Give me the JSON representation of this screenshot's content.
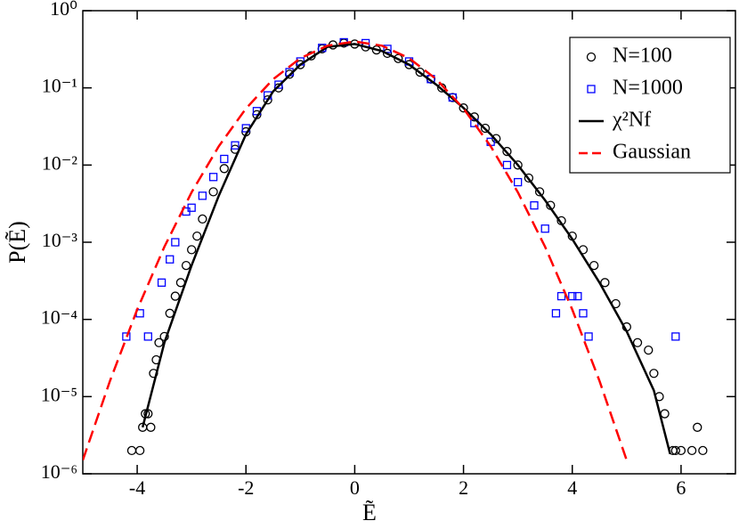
{
  "chart_data": {
    "type": "scatter",
    "x_label": "Ẽ",
    "y_label": "P(Ẽ)",
    "xlim": [
      -5,
      7
    ],
    "xticks": [
      -4,
      -2,
      0,
      2,
      4,
      6
    ],
    "ylim": [
      1e-06,
      1
    ],
    "log_y": true,
    "yticks": [
      {
        "value": 1e-06,
        "label": "10⁻⁶"
      },
      {
        "value": 1e-05,
        "label": "10⁻⁵"
      },
      {
        "value": 0.0001,
        "label": "10⁻⁴"
      },
      {
        "value": 0.001,
        "label": "10⁻³"
      },
      {
        "value": 0.01,
        "label": "10⁻²"
      },
      {
        "value": 0.1,
        "label": "10⁻¹"
      },
      {
        "value": 1,
        "label": "10⁰"
      }
    ],
    "legend": "upper right",
    "series": [
      {
        "name": "N=100",
        "color": "#000000",
        "marker": "circle",
        "x": [
          -4.1,
          -3.95,
          -3.9,
          -3.85,
          -3.8,
          -3.75,
          -3.7,
          -3.65,
          -3.6,
          -3.5,
          -3.4,
          -3.3,
          -3.2,
          -3.1,
          -3.0,
          -2.9,
          -2.8,
          -2.6,
          -2.4,
          -2.2,
          -2.0,
          -1.8,
          -1.6,
          -1.4,
          -1.2,
          -1.0,
          -0.8,
          -0.6,
          -0.4,
          -0.2,
          0.0,
          0.2,
          0.4,
          0.6,
          0.8,
          1.0,
          1.2,
          1.4,
          1.6,
          1.8,
          2.0,
          2.2,
          2.4,
          2.6,
          2.8,
          3.0,
          3.2,
          3.4,
          3.6,
          3.8,
          4.0,
          4.2,
          4.4,
          4.6,
          4.8,
          5.0,
          5.2,
          5.4,
          5.5,
          5.6,
          5.7,
          5.85,
          5.9,
          6.0,
          6.2,
          6.3,
          6.4
        ],
        "values": [
          2e-06,
          2e-06,
          4e-06,
          6e-06,
          6e-06,
          4e-06,
          2e-05,
          3e-05,
          5e-05,
          6e-05,
          0.00012,
          0.0002,
          0.0003,
          0.0005,
          0.0008,
          0.0012,
          0.002,
          0.0045,
          0.009,
          0.016,
          0.027,
          0.045,
          0.07,
          0.1,
          0.15,
          0.2,
          0.26,
          0.32,
          0.36,
          0.38,
          0.37,
          0.34,
          0.31,
          0.28,
          0.24,
          0.2,
          0.16,
          0.13,
          0.1,
          0.075,
          0.055,
          0.042,
          0.03,
          0.022,
          0.015,
          0.01,
          0.0068,
          0.0045,
          0.003,
          0.0019,
          0.0012,
          0.0008,
          0.0005,
          0.0003,
          0.00016,
          8e-05,
          5e-05,
          4e-05,
          2e-05,
          1e-05,
          6e-06,
          2e-06,
          2e-06,
          2e-06,
          2e-06,
          4e-06,
          2e-06
        ]
      },
      {
        "name": "N=1000",
        "color": "#0000ff",
        "marker": "square",
        "x": [
          -4.2,
          -3.95,
          -3.8,
          -3.55,
          -3.4,
          -3.3,
          -3.1,
          -3.0,
          -2.8,
          -2.6,
          -2.4,
          -2.2,
          -2.0,
          -1.8,
          -1.6,
          -1.4,
          -1.2,
          -1.0,
          -0.6,
          -0.2,
          0.2,
          0.6,
          1.0,
          1.4,
          1.8,
          2.2,
          2.5,
          2.8,
          3.0,
          3.3,
          3.5,
          3.7,
          3.8,
          4.0,
          4.1,
          4.2,
          4.3,
          5.9
        ],
        "values": [
          6e-05,
          0.00012,
          6e-05,
          0.0003,
          0.0006,
          0.001,
          0.0025,
          0.0028,
          0.004,
          0.007,
          0.012,
          0.018,
          0.03,
          0.05,
          0.08,
          0.11,
          0.16,
          0.22,
          0.33,
          0.39,
          0.38,
          0.32,
          0.22,
          0.13,
          0.075,
          0.035,
          0.02,
          0.01,
          0.006,
          0.003,
          0.0015,
          0.00012,
          0.0002,
          0.0002,
          0.0002,
          0.00012,
          6e-05,
          6e-05
        ]
      },
      {
        "name": "χ²Nf",
        "color": "#000000",
        "style": "solid",
        "x": [
          -3.9,
          -3.5,
          -3.0,
          -2.5,
          -2.0,
          -1.5,
          -1.0,
          -0.5,
          0.0,
          0.5,
          1.0,
          1.5,
          2.0,
          2.5,
          3.0,
          3.5,
          4.0,
          4.5,
          5.0,
          5.5,
          5.8
        ],
        "values": [
          4e-06,
          5e-05,
          0.0005,
          0.004,
          0.025,
          0.09,
          0.2,
          0.34,
          0.37,
          0.3,
          0.2,
          0.11,
          0.055,
          0.025,
          0.01,
          0.0035,
          0.0011,
          0.0003,
          7e-05,
          1.2e-05,
          1.8e-06
        ]
      },
      {
        "name": "Gaussian",
        "color": "#ff0000",
        "style": "dashed",
        "x": [
          -5.0,
          -4.5,
          -4.0,
          -3.5,
          -3.0,
          -2.5,
          -2.0,
          -1.5,
          -1.0,
          -0.5,
          0.0,
          0.5,
          1.0,
          1.5,
          2.0,
          2.5,
          3.0,
          3.5,
          4.0,
          4.5,
          5.0
        ],
        "values": [
          1.5e-06,
          1.6e-05,
          0.000134,
          0.000873,
          0.00443,
          0.0175,
          0.054,
          0.1295,
          0.242,
          0.352,
          0.399,
          0.352,
          0.242,
          0.1295,
          0.054,
          0.0175,
          0.00443,
          0.000873,
          0.000134,
          1.6e-05,
          1.5e-06
        ]
      }
    ]
  }
}
